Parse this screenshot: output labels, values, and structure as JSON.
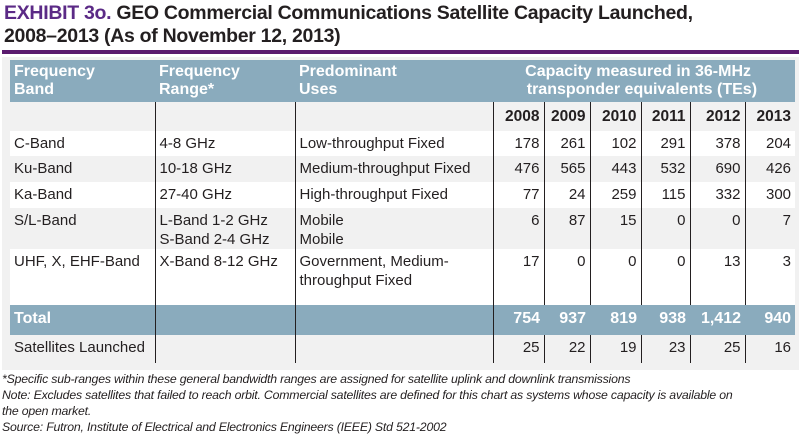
{
  "title": {
    "exhibit": "EXHIBIT 3o.",
    "line1": "GEO Commercial Communications Satellite Capacity Launched,",
    "line2": "2008–2013 (As of November 12, 2013)"
  },
  "header": {
    "band": [
      "Frequency",
      "Band"
    ],
    "range": [
      "Frequency",
      "Range*"
    ],
    "uses": [
      "Predominant",
      "Uses"
    ],
    "capacity": [
      "Capacity measured in 36-MHz",
      "transponder equivalents (TEs)"
    ]
  },
  "years": [
    "2008",
    "2009",
    "2010",
    "2011",
    "2012",
    "2013"
  ],
  "rows": [
    {
      "band": "C-Band",
      "range": [
        "4-8 GHz"
      ],
      "uses": [
        "Low-throughput Fixed"
      ],
      "values": [
        "178",
        "261",
        "102",
        "291",
        "378",
        "204"
      ]
    },
    {
      "band": "Ku-Band",
      "range": [
        "10-18 GHz"
      ],
      "uses": [
        "Medium-throughput Fixed"
      ],
      "values": [
        "476",
        "565",
        "443",
        "532",
        "690",
        "426"
      ]
    },
    {
      "band": "Ka-Band",
      "range": [
        "27-40 GHz"
      ],
      "uses": [
        "High-throughput Fixed"
      ],
      "values": [
        "77",
        "24",
        "259",
        "115",
        "332",
        "300"
      ]
    },
    {
      "band": "S/L-Band",
      "range": [
        "L-Band 1-2 GHz",
        "S-Band 2-4 GHz"
      ],
      "uses": [
        "Mobile",
        "Mobile"
      ],
      "values": [
        "6",
        "87",
        "15",
        "0",
        "0",
        "7"
      ]
    },
    {
      "band": "UHF, X, EHF-Band",
      "range": [
        "X-Band 8-12 GHz"
      ],
      "uses": [
        "Government, Medium-",
        "throughput Fixed"
      ],
      "values": [
        "17",
        "0",
        "0",
        "0",
        "13",
        "3"
      ]
    }
  ],
  "total": {
    "label": "Total",
    "values": [
      "754",
      "937",
      "819",
      "938",
      "1,412",
      "940"
    ]
  },
  "satellites": {
    "label": "Satellites Launched",
    "values": [
      "25",
      "22",
      "19",
      "23",
      "25",
      "16"
    ]
  },
  "notes": [
    "*Specific sub-ranges within these general bandwidth ranges are assigned for satellite uplink and downlink transmissions",
    "Note: Excludes satellites that failed to reach orbit. Commercial satellites are defined for this chart as systems whose capacity is available on",
    "the open market.",
    "Source:  Futron, Institute of Electrical and Electronics Engineers (IEEE) Std 521-2002"
  ],
  "colors": {
    "accent": "#5b2a86",
    "rule": "#5a1a6e",
    "header": "#8aabbd",
    "band": "#f1f1f1"
  }
}
